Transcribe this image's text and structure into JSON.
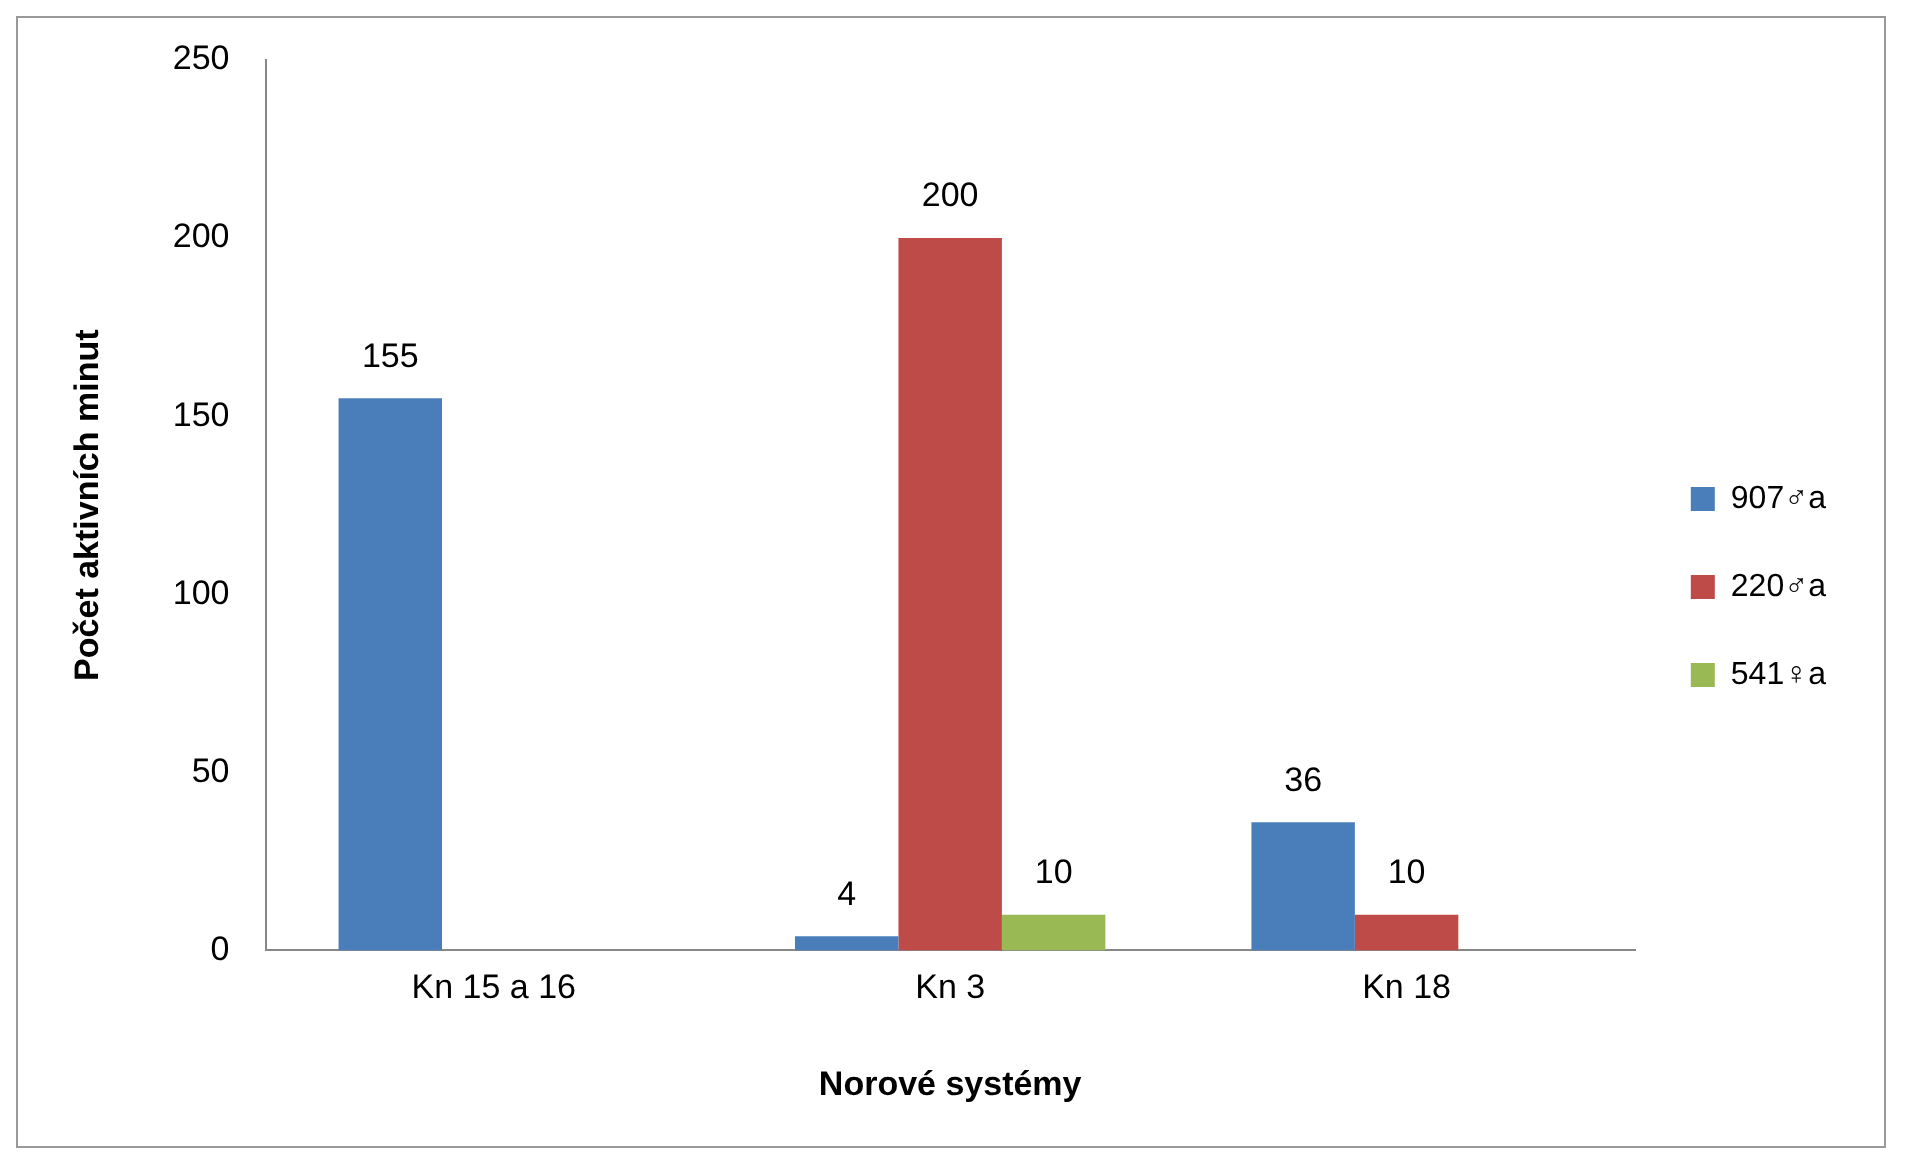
{
  "chart_data": {
    "type": "bar",
    "xlabel": "Norové systémy",
    "ylabel": "Počet aktivních minut",
    "categories": [
      "Kn 15 a 16",
      "Kn 3",
      "Kn 18"
    ],
    "series": [
      {
        "name": "907♂a",
        "color": "#4a7ebb",
        "values": [
          155,
          4,
          36
        ]
      },
      {
        "name": "220♂a",
        "color": "#be4b48",
        "values": [
          null,
          200,
          10
        ]
      },
      {
        "name": "541♀a",
        "color": "#98b954",
        "values": [
          null,
          10,
          null
        ]
      }
    ],
    "ylim": [
      0,
      250
    ],
    "yticks": [
      0,
      50,
      100,
      150,
      200,
      250
    ],
    "grid": false,
    "legend": "right",
    "data_labels": true
  }
}
